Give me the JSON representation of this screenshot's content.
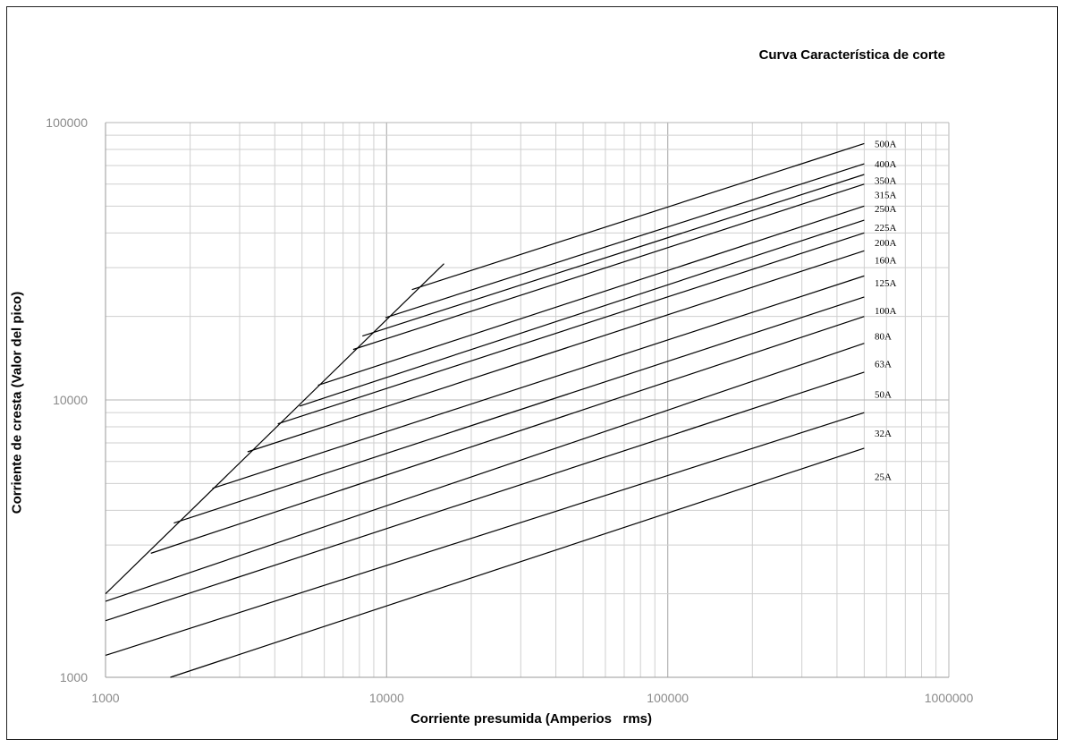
{
  "chart_data": {
    "type": "line",
    "title": "Curva Característica de corte",
    "xlabel": "Corriente presumida (Amperios   rms)",
    "ylabel": "Corriente de cresta (Valor del pico)",
    "x_scale": "log",
    "y_scale": "log",
    "xlim": [
      1000,
      1000000
    ],
    "ylim": [
      1000,
      100000
    ],
    "grid": true,
    "x_ticks": [
      "1000",
      "10000",
      "100000",
      "1000000"
    ],
    "y_ticks": [
      "1000",
      "10000",
      "100000"
    ],
    "envelope": {
      "name": "",
      "x": [
        1000,
        16000
      ],
      "y": [
        2000,
        31000
      ]
    },
    "series": [
      {
        "name": "500A",
        "x": [
          12300,
          500000
        ],
        "y": [
          25000,
          84000
        ]
      },
      {
        "name": "400A",
        "x": [
          9900,
          500000
        ],
        "y": [
          19800,
          71000
        ]
      },
      {
        "name": "350A",
        "x": [
          8200,
          500000
        ],
        "y": [
          17000,
          65000
        ]
      },
      {
        "name": "315A",
        "x": [
          7600,
          500000
        ],
        "y": [
          15200,
          60000
        ]
      },
      {
        "name": "250A",
        "x": [
          5700,
          500000
        ],
        "y": [
          11300,
          50000
        ]
      },
      {
        "name": "225A",
        "x": [
          4900,
          500000
        ],
        "y": [
          9500,
          44500
        ]
      },
      {
        "name": "200A",
        "x": [
          4100,
          500000
        ],
        "y": [
          8200,
          40000
        ]
      },
      {
        "name": "160A",
        "x": [
          3200,
          500000
        ],
        "y": [
          6500,
          34500
        ]
      },
      {
        "name": "125A",
        "x": [
          2400,
          500000
        ],
        "y": [
          4800,
          28000
        ]
      },
      {
        "name": "100A",
        "x": [
          1750,
          500000
        ],
        "y": [
          3600,
          23500
        ]
      },
      {
        "name": "80A",
        "x": [
          1450,
          500000
        ],
        "y": [
          2800,
          20000
        ]
      },
      {
        "name": "63A",
        "x": [
          1000,
          500000
        ],
        "y": [
          1880,
          16000
        ]
      },
      {
        "name": "50A",
        "x": [
          1000,
          500000
        ],
        "y": [
          1600,
          12600
        ]
      },
      {
        "name": "32A",
        "x": [
          1000,
          500000
        ],
        "y": [
          1200,
          9000
        ]
      },
      {
        "name": "25A",
        "x": [
          1700,
          500000
        ],
        "y": [
          1000,
          6700
        ]
      }
    ],
    "label_y": [
      84000,
      71000,
      62000,
      55000,
      49000,
      42000,
      37000,
      32000,
      26500,
      21000,
      17000,
      13500,
      10500,
      7600,
      5300
    ]
  }
}
